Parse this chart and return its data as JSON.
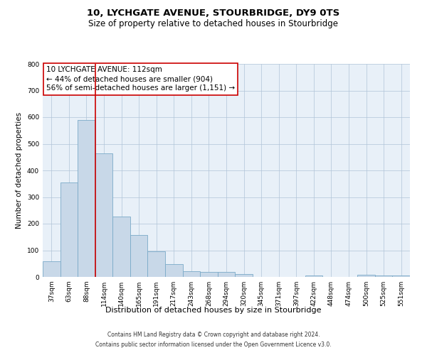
{
  "title1": "10, LYCHGATE AVENUE, STOURBRIDGE, DY9 0TS",
  "title2": "Size of property relative to detached houses in Stourbridge",
  "xlabel": "Distribution of detached houses by size in Stourbridge",
  "ylabel": "Number of detached properties",
  "categories": [
    "37sqm",
    "63sqm",
    "88sqm",
    "114sqm",
    "140sqm",
    "165sqm",
    "191sqm",
    "217sqm",
    "243sqm",
    "268sqm",
    "294sqm",
    "320sqm",
    "345sqm",
    "371sqm",
    "397sqm",
    "422sqm",
    "448sqm",
    "474sqm",
    "500sqm",
    "525sqm",
    "551sqm"
  ],
  "values": [
    60,
    355,
    590,
    465,
    228,
    158,
    95,
    48,
    22,
    18,
    18,
    12,
    0,
    0,
    0,
    5,
    0,
    0,
    8,
    6,
    6
  ],
  "bar_color": "#c8d8e8",
  "bar_edge_color": "#7aaac8",
  "vline_x_index": 2,
  "vline_color": "#cc0000",
  "annotation_line1": "10 LYCHGATE AVENUE: 112sqm",
  "annotation_line2": "← 44% of detached houses are smaller (904)",
  "annotation_line3": "56% of semi-detached houses are larger (1,151) →",
  "annotation_box_color": "#ffffff",
  "annotation_box_edge_color": "#cc0000",
  "ylim": [
    0,
    800
  ],
  "yticks": [
    0,
    100,
    200,
    300,
    400,
    500,
    600,
    700,
    800
  ],
  "grid_color": "#b0c4d8",
  "bg_color": "#e8f0f8",
  "footer1": "Contains HM Land Registry data © Crown copyright and database right 2024.",
  "footer2": "Contains public sector information licensed under the Open Government Licence v3.0.",
  "title_fontsize": 9.5,
  "subtitle_fontsize": 8.5,
  "ylabel_fontsize": 7.5,
  "xlabel_fontsize": 8.0,
  "tick_fontsize": 6.5,
  "annotation_fontsize": 7.5,
  "footer_fontsize": 5.5
}
